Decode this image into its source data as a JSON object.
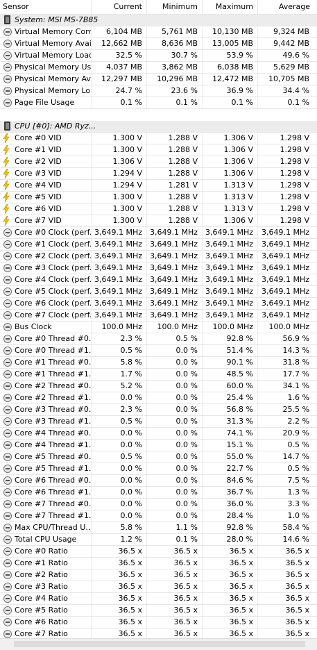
{
  "columns": {
    "sensor": "Sensor",
    "current": "Current",
    "minimum": "Minimum",
    "maximum": "Maximum",
    "average": "Average"
  },
  "rows": [
    {
      "kind": "group",
      "icon": "chip",
      "name": "System: MSI MS-7B85"
    },
    {
      "kind": "sensor",
      "icon": "clock",
      "name": "Virtual Memory Com...",
      "current": "6,104 MB",
      "minimum": "5,761 MB",
      "maximum": "10,130 MB",
      "average": "9,324 MB"
    },
    {
      "kind": "sensor",
      "icon": "clock",
      "name": "Virtual Memory Avai...",
      "current": "12,662 MB",
      "minimum": "8,636 MB",
      "maximum": "13,005 MB",
      "average": "9,442 MB"
    },
    {
      "kind": "sensor",
      "icon": "clock",
      "name": "Virtual Memory Load",
      "current": "32.5 %",
      "minimum": "30.7 %",
      "maximum": "53.9 %",
      "average": "49.6 %"
    },
    {
      "kind": "sensor",
      "icon": "clock",
      "name": "Physical Memory Used",
      "current": "4,037 MB",
      "minimum": "3,862 MB",
      "maximum": "6,038 MB",
      "average": "5,629 MB"
    },
    {
      "kind": "sensor",
      "icon": "clock",
      "name": "Physical Memory Av...",
      "current": "12,297 MB",
      "minimum": "10,296 MB",
      "maximum": "12,472 MB",
      "average": "10,705 MB"
    },
    {
      "kind": "sensor",
      "icon": "clock",
      "name": "Physical Memory Load",
      "current": "24.7 %",
      "minimum": "23.6 %",
      "maximum": "36.9 %",
      "average": "34.4 %"
    },
    {
      "kind": "sensor",
      "icon": "clock",
      "name": "Page File Usage",
      "current": "0.1 %",
      "minimum": "0.1 %",
      "maximum": "0.1 %",
      "average": "0.1 %"
    },
    {
      "kind": "blank"
    },
    {
      "kind": "group",
      "icon": "chip",
      "name": "CPU [#0]: AMD Ryz..."
    },
    {
      "kind": "sensor",
      "icon": "volt",
      "name": "Core #0 VID",
      "current": "1.300 V",
      "minimum": "1.288 V",
      "maximum": "1.306 V",
      "average": "1.298 V"
    },
    {
      "kind": "sensor",
      "icon": "volt",
      "name": "Core #1 VID",
      "current": "1.300 V",
      "minimum": "1.288 V",
      "maximum": "1.306 V",
      "average": "1.298 V"
    },
    {
      "kind": "sensor",
      "icon": "volt",
      "name": "Core #2 VID",
      "current": "1.306 V",
      "minimum": "1.288 V",
      "maximum": "1.306 V",
      "average": "1.298 V"
    },
    {
      "kind": "sensor",
      "icon": "volt",
      "name": "Core #3 VID",
      "current": "1.294 V",
      "minimum": "1.288 V",
      "maximum": "1.306 V",
      "average": "1.298 V"
    },
    {
      "kind": "sensor",
      "icon": "volt",
      "name": "Core #4 VID",
      "current": "1.294 V",
      "minimum": "1.281 V",
      "maximum": "1.313 V",
      "average": "1.298 V"
    },
    {
      "kind": "sensor",
      "icon": "volt",
      "name": "Core #5 VID",
      "current": "1.300 V",
      "minimum": "1.288 V",
      "maximum": "1.313 V",
      "average": "1.298 V"
    },
    {
      "kind": "sensor",
      "icon": "volt",
      "name": "Core #6 VID",
      "current": "1.300 V",
      "minimum": "1.288 V",
      "maximum": "1.313 V",
      "average": "1.298 V"
    },
    {
      "kind": "sensor",
      "icon": "volt",
      "name": "Core #7 VID",
      "current": "1.300 V",
      "minimum": "1.288 V",
      "maximum": "1.306 V",
      "average": "1.298 V"
    },
    {
      "kind": "sensor",
      "icon": "clock",
      "name": "Core #0 Clock (perf...",
      "current": "3,649.1 MHz",
      "minimum": "3,649.1 MHz",
      "maximum": "3,649.1 MHz",
      "average": "3,649.1 MHz"
    },
    {
      "kind": "sensor",
      "icon": "clock",
      "name": "Core #1 Clock (perf...",
      "current": "3,649.1 MHz",
      "minimum": "3,649.1 MHz",
      "maximum": "3,649.1 MHz",
      "average": "3,649.1 MHz"
    },
    {
      "kind": "sensor",
      "icon": "clock",
      "name": "Core #2 Clock (perf...",
      "current": "3,649.1 MHz",
      "minimum": "3,649.1 MHz",
      "maximum": "3,649.1 MHz",
      "average": "3,649.1 MHz"
    },
    {
      "kind": "sensor",
      "icon": "clock",
      "name": "Core #3 Clock (perf...",
      "current": "3,649.1 MHz",
      "minimum": "3,649.1 MHz",
      "maximum": "3,649.1 MHz",
      "average": "3,649.1 MHz"
    },
    {
      "kind": "sensor",
      "icon": "clock",
      "name": "Core #4 Clock (perf...",
      "current": "3,649.1 MHz",
      "minimum": "3,649.1 MHz",
      "maximum": "3,649.1 MHz",
      "average": "3,649.1 MHz"
    },
    {
      "kind": "sensor",
      "icon": "clock",
      "name": "Core #5 Clock (perf...",
      "current": "3,649.1 MHz",
      "minimum": "3,649.1 MHz",
      "maximum": "3,649.1 MHz",
      "average": "3,649.1 MHz"
    },
    {
      "kind": "sensor",
      "icon": "clock",
      "name": "Core #6 Clock (perf...",
      "current": "3,649.1 MHz",
      "minimum": "3,649.1 MHz",
      "maximum": "3,649.1 MHz",
      "average": "3,649.1 MHz"
    },
    {
      "kind": "sensor",
      "icon": "clock",
      "name": "Core #7 Clock (perf...",
      "current": "3,649.1 MHz",
      "minimum": "3,649.1 MHz",
      "maximum": "3,649.1 MHz",
      "average": "3,649.1 MHz"
    },
    {
      "kind": "sensor",
      "icon": "clock",
      "name": "Bus Clock",
      "current": "100.0 MHz",
      "minimum": "100.0 MHz",
      "maximum": "100.0 MHz",
      "average": "100.0 MHz"
    },
    {
      "kind": "sensor",
      "icon": "clock",
      "name": "Core #0 Thread #0...",
      "current": "2.3 %",
      "minimum": "0.5 %",
      "maximum": "92.8 %",
      "average": "56.9 %"
    },
    {
      "kind": "sensor",
      "icon": "clock",
      "name": "Core #0 Thread #1...",
      "current": "0.5 %",
      "minimum": "0.0 %",
      "maximum": "51.4 %",
      "average": "14.3 %"
    },
    {
      "kind": "sensor",
      "icon": "clock",
      "name": "Core #1 Thread #0...",
      "current": "5.8 %",
      "minimum": "0.0 %",
      "maximum": "90.1 %",
      "average": "31.8 %"
    },
    {
      "kind": "sensor",
      "icon": "clock",
      "name": "Core #1 Thread #1...",
      "current": "1.7 %",
      "minimum": "0.0 %",
      "maximum": "48.5 %",
      "average": "17.7 %"
    },
    {
      "kind": "sensor",
      "icon": "clock",
      "name": "Core #2 Thread #0...",
      "current": "5.2 %",
      "minimum": "0.0 %",
      "maximum": "60.0 %",
      "average": "34.1 %"
    },
    {
      "kind": "sensor",
      "icon": "clock",
      "name": "Core #2 Thread #1...",
      "current": "0.0 %",
      "minimum": "0.0 %",
      "maximum": "25.4 %",
      "average": "1.6 %"
    },
    {
      "kind": "sensor",
      "icon": "clock",
      "name": "Core #3 Thread #0...",
      "current": "2.3 %",
      "minimum": "0.0 %",
      "maximum": "56.8 %",
      "average": "25.5 %"
    },
    {
      "kind": "sensor",
      "icon": "clock",
      "name": "Core #3 Thread #1...",
      "current": "0.5 %",
      "minimum": "0.0 %",
      "maximum": "31.3 %",
      "average": "2.2 %"
    },
    {
      "kind": "sensor",
      "icon": "clock",
      "name": "Core #4 Thread #0...",
      "current": "0.0 %",
      "minimum": "0.0 %",
      "maximum": "74.1 %",
      "average": "20.9 %"
    },
    {
      "kind": "sensor",
      "icon": "clock",
      "name": "Core #4 Thread #1...",
      "current": "0.0 %",
      "minimum": "0.0 %",
      "maximum": "15.1 %",
      "average": "0.5 %"
    },
    {
      "kind": "sensor",
      "icon": "clock",
      "name": "Core #5 Thread #0...",
      "current": "0.5 %",
      "minimum": "0.0 %",
      "maximum": "55.0 %",
      "average": "14.7 %"
    },
    {
      "kind": "sensor",
      "icon": "clock",
      "name": "Core #5 Thread #1...",
      "current": "0.0 %",
      "minimum": "0.0 %",
      "maximum": "22.7 %",
      "average": "0.5 %"
    },
    {
      "kind": "sensor",
      "icon": "clock",
      "name": "Core #6 Thread #0...",
      "current": "0.0 %",
      "minimum": "0.0 %",
      "maximum": "84.6 %",
      "average": "7.5 %"
    },
    {
      "kind": "sensor",
      "icon": "clock",
      "name": "Core #6 Thread #1...",
      "current": "0.0 %",
      "minimum": "0.0 %",
      "maximum": "36.7 %",
      "average": "1.3 %"
    },
    {
      "kind": "sensor",
      "icon": "clock",
      "name": "Core #7 Thread #0...",
      "current": "0.0 %",
      "minimum": "0.0 %",
      "maximum": "36.0 %",
      "average": "3.3 %"
    },
    {
      "kind": "sensor",
      "icon": "clock",
      "name": "Core #7 Thread #1...",
      "current": "0.0 %",
      "minimum": "0.0 %",
      "maximum": "28.4 %",
      "average": "1.0 %"
    },
    {
      "kind": "sensor",
      "icon": "clock",
      "name": "Max CPU/Thread U...",
      "current": "5.8 %",
      "minimum": "1.1 %",
      "maximum": "92.8 %",
      "average": "58.4 %"
    },
    {
      "kind": "sensor",
      "icon": "clock",
      "name": "Total CPU Usage",
      "current": "1.2 %",
      "minimum": "0.1 %",
      "maximum": "28.0 %",
      "average": "14.6 %"
    },
    {
      "kind": "sensor",
      "icon": "clock",
      "name": "Core #0 Ratio",
      "current": "36.5 x",
      "minimum": "36.5 x",
      "maximum": "36.5 x",
      "average": "36.5 x"
    },
    {
      "kind": "sensor",
      "icon": "clock",
      "name": "Core #1 Ratio",
      "current": "36.5 x",
      "minimum": "36.5 x",
      "maximum": "36.5 x",
      "average": "36.5 x"
    },
    {
      "kind": "sensor",
      "icon": "clock",
      "name": "Core #2 Ratio",
      "current": "36.5 x",
      "minimum": "36.5 x",
      "maximum": "36.5 x",
      "average": "36.5 x"
    },
    {
      "kind": "sensor",
      "icon": "clock",
      "name": "Core #3 Ratio",
      "current": "36.5 x",
      "minimum": "36.5 x",
      "maximum": "36.5 x",
      "average": "36.5 x"
    },
    {
      "kind": "sensor",
      "icon": "clock",
      "name": "Core #4 Ratio",
      "current": "36.5 x",
      "minimum": "36.5 x",
      "maximum": "36.5 x",
      "average": "36.5 x"
    },
    {
      "kind": "sensor",
      "icon": "clock",
      "name": "Core #5 Ratio",
      "current": "36.5 x",
      "minimum": "36.5 x",
      "maximum": "36.5 x",
      "average": "36.5 x"
    },
    {
      "kind": "sensor",
      "icon": "clock",
      "name": "Core #6 Ratio",
      "current": "36.5 x",
      "minimum": "36.5 x",
      "maximum": "36.5 x",
      "average": "36.5 x"
    },
    {
      "kind": "sensor",
      "icon": "clock",
      "name": "Core #7 Ratio",
      "current": "36.5 x",
      "minimum": "36.5 x",
      "maximum": "36.5 x",
      "average": "36.5 x"
    }
  ]
}
